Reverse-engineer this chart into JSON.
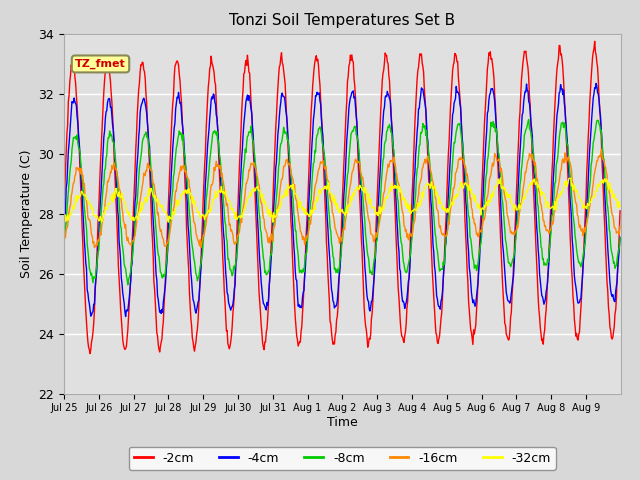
{
  "title": "Tonzi Soil Temperatures Set B",
  "xlabel": "Time",
  "ylabel": "Soil Temperature (C)",
  "ylim": [
    22,
    34
  ],
  "tick_labels": [
    "Jul 25",
    "Jul 26",
    "Jul 27",
    "Jul 28",
    "Jul 29",
    "Jul 30",
    "Jul 31",
    "Aug 1",
    "Aug 2",
    "Aug 3",
    "Aug 4",
    "Aug 5",
    "Aug 6",
    "Aug 7",
    "Aug 8",
    "Aug 9"
  ],
  "colors": {
    "-2cm": "#ff0000",
    "-4cm": "#0000ff",
    "-8cm": "#00cc00",
    "-16cm": "#ff8800",
    "-32cm": "#ffff00"
  },
  "label_box": "TZ_fmet",
  "label_box_bg": "#ffff99",
  "label_box_text_color": "#cc0000",
  "label_box_edge_color": "#888855",
  "fig_bg_color": "#d8d8d8",
  "plot_bg_color": "#e0e0e0",
  "n_days": 16,
  "pts_per_day": 48,
  "base_mean": 28.2,
  "trend_total": 0.5,
  "amp_2cm": 4.8,
  "amp_4cm": 3.6,
  "amp_8cm": 2.4,
  "amp_16cm": 1.3,
  "amp_32cm": 0.45,
  "phase_2cm": 0.0,
  "phase_4cm": 0.25,
  "phase_8cm": 0.55,
  "phase_16cm": 1.05,
  "phase_32cm": 1.65
}
